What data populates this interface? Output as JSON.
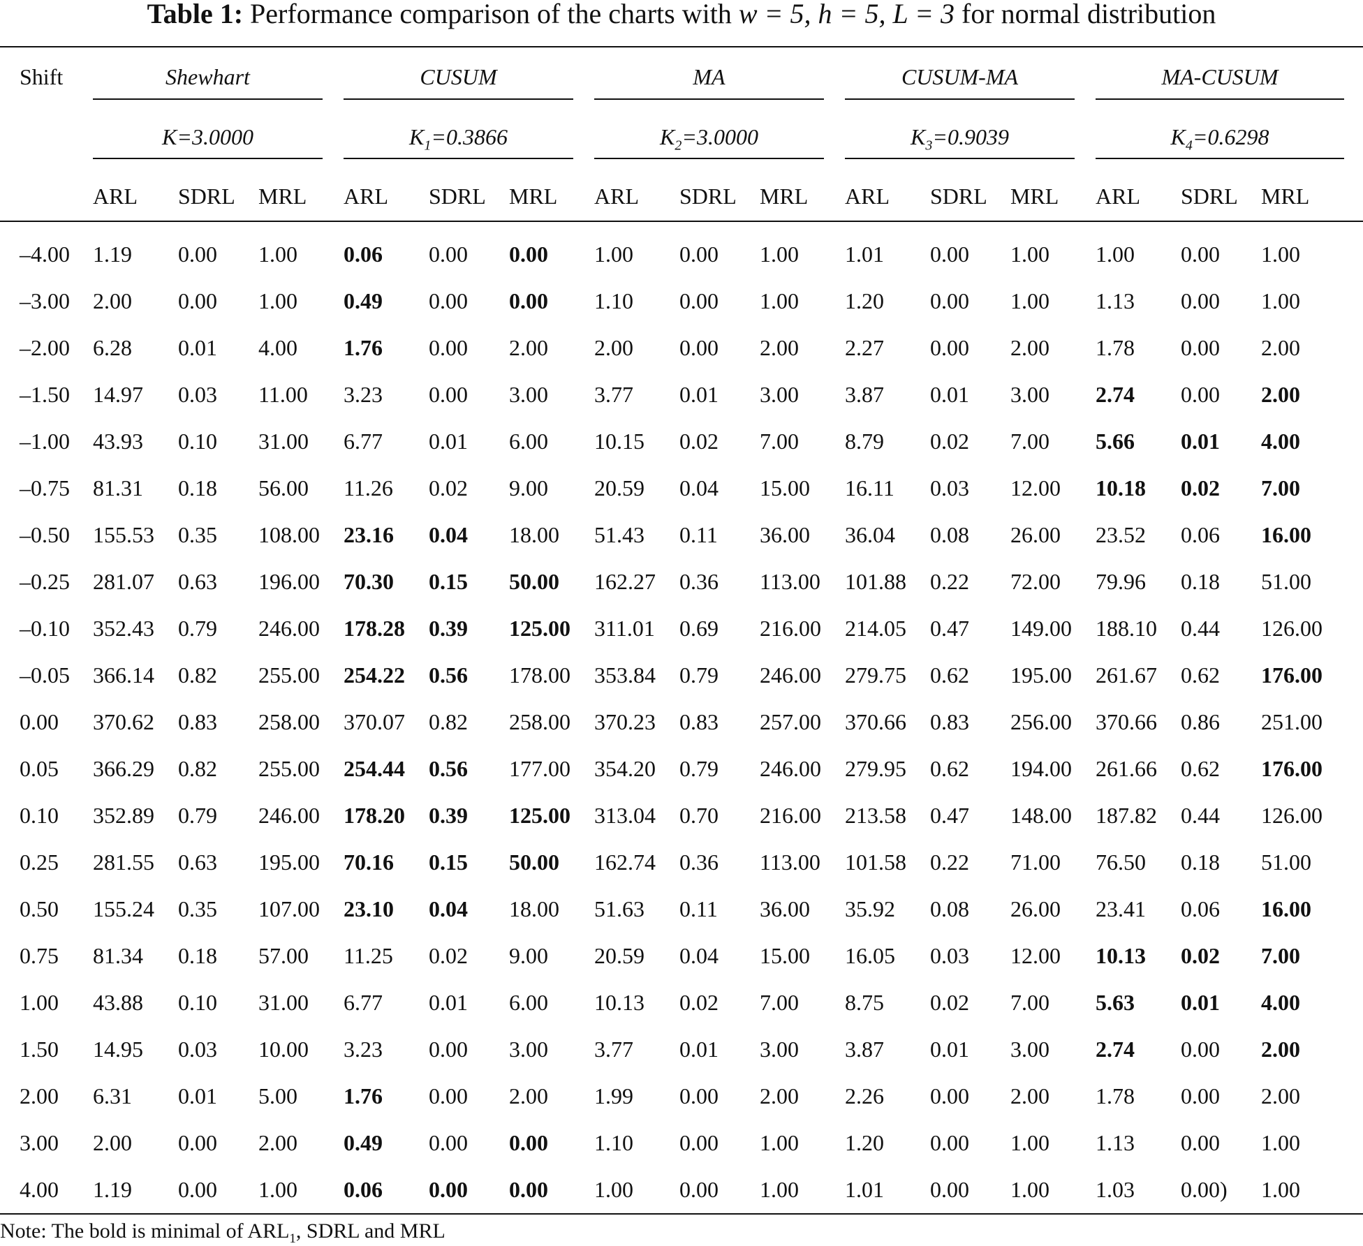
{
  "caption": {
    "label": "Table 1:",
    "text_before": "Performance comparison of the charts with",
    "math": "w = 5, h = 5, L = 3",
    "text_after": "for normal distribution"
  },
  "shift_header": "Shift",
  "groups": [
    {
      "name": "Shewhart",
      "k_sym": "K",
      "k_sub": "",
      "k_value": "=3.0000"
    },
    {
      "name": "CUSUM",
      "k_sym": "K",
      "k_sub": "1",
      "k_value": "=0.3866"
    },
    {
      "name": "MA",
      "k_sym": "K",
      "k_sub": "2",
      "k_value": "=3.0000"
    },
    {
      "name": "CUSUM-MA",
      "k_sym": "K",
      "k_sub": "3",
      "k_value": "=0.9039"
    },
    {
      "name": "MA-CUSUM",
      "k_sym": "K",
      "k_sub": "4",
      "k_value": "=0.6298"
    }
  ],
  "metrics": [
    "ARL",
    "SDRL",
    "MRL"
  ],
  "rows": [
    {
      "shift": "–4.00",
      "cells": [
        "1.19",
        "0.00",
        "1.00",
        "0.06",
        "0.00",
        "0.00",
        "1.00",
        "0.00",
        "1.00",
        "1.01",
        "0.00",
        "1.00",
        "1.00",
        "0.00",
        "1.00"
      ],
      "bold": [
        3,
        5
      ]
    },
    {
      "shift": "–3.00",
      "cells": [
        "2.00",
        "0.00",
        "1.00",
        "0.49",
        "0.00",
        "0.00",
        "1.10",
        "0.00",
        "1.00",
        "1.20",
        "0.00",
        "1.00",
        "1.13",
        "0.00",
        "1.00"
      ],
      "bold": [
        3,
        5
      ]
    },
    {
      "shift": "–2.00",
      "cells": [
        "6.28",
        "0.01",
        "4.00",
        "1.76",
        "0.00",
        "2.00",
        "2.00",
        "0.00",
        "2.00",
        "2.27",
        "0.00",
        "2.00",
        "1.78",
        "0.00",
        "2.00"
      ],
      "bold": [
        3
      ]
    },
    {
      "shift": "–1.50",
      "cells": [
        "14.97",
        "0.03",
        "11.00",
        "3.23",
        "0.00",
        "3.00",
        "3.77",
        "0.01",
        "3.00",
        "3.87",
        "0.01",
        "3.00",
        "2.74",
        "0.00",
        "2.00"
      ],
      "bold": [
        12,
        14
      ]
    },
    {
      "shift": "–1.00",
      "cells": [
        "43.93",
        "0.10",
        "31.00",
        "6.77",
        "0.01",
        "6.00",
        "10.15",
        "0.02",
        "7.00",
        "8.79",
        "0.02",
        "7.00",
        "5.66",
        "0.01",
        "4.00"
      ],
      "bold": [
        12,
        13,
        14
      ]
    },
    {
      "shift": "–0.75",
      "cells": [
        "81.31",
        "0.18",
        "56.00",
        "11.26",
        "0.02",
        "9.00",
        "20.59",
        "0.04",
        "15.00",
        "16.11",
        "0.03",
        "12.00",
        "10.18",
        "0.02",
        "7.00"
      ],
      "bold": [
        12,
        13,
        14
      ]
    },
    {
      "shift": "–0.50",
      "cells": [
        "155.53",
        "0.35",
        "108.00",
        "23.16",
        "0.04",
        "18.00",
        "51.43",
        "0.11",
        "36.00",
        "36.04",
        "0.08",
        "26.00",
        "23.52",
        "0.06",
        "16.00"
      ],
      "bold": [
        3,
        4,
        14
      ]
    },
    {
      "shift": "–0.25",
      "cells": [
        "281.07",
        "0.63",
        "196.00",
        "70.30",
        "0.15",
        "50.00",
        "162.27",
        "0.36",
        "113.00",
        "101.88",
        "0.22",
        "72.00",
        "79.96",
        "0.18",
        "51.00"
      ],
      "bold": [
        3,
        4,
        5
      ]
    },
    {
      "shift": "–0.10",
      "cells": [
        "352.43",
        "0.79",
        "246.00",
        "178.28",
        "0.39",
        "125.00",
        "311.01",
        "0.69",
        "216.00",
        "214.05",
        "0.47",
        "149.00",
        "188.10",
        "0.44",
        "126.00"
      ],
      "bold": [
        3,
        4,
        5
      ]
    },
    {
      "shift": "–0.05",
      "cells": [
        "366.14",
        "0.82",
        "255.00",
        "254.22",
        "0.56",
        "178.00",
        "353.84",
        "0.79",
        "246.00",
        "279.75",
        "0.62",
        "195.00",
        "261.67",
        "0.62",
        "176.00"
      ],
      "bold": [
        3,
        4,
        14
      ]
    },
    {
      "shift": "0.00",
      "cells": [
        "370.62",
        "0.83",
        "258.00",
        "370.07",
        "0.82",
        "258.00",
        "370.23",
        "0.83",
        "257.00",
        "370.66",
        "0.83",
        "256.00",
        "370.66",
        "0.86",
        "251.00"
      ],
      "bold": []
    },
    {
      "shift": "0.05",
      "cells": [
        "366.29",
        "0.82",
        "255.00",
        "254.44",
        "0.56",
        "177.00",
        "354.20",
        "0.79",
        "246.00",
        "279.95",
        "0.62",
        "194.00",
        "261.66",
        "0.62",
        "176.00"
      ],
      "bold": [
        3,
        4,
        14
      ]
    },
    {
      "shift": "0.10",
      "cells": [
        "352.89",
        "0.79",
        "246.00",
        "178.20",
        "0.39",
        "125.00",
        "313.04",
        "0.70",
        "216.00",
        "213.58",
        "0.47",
        "148.00",
        "187.82",
        "0.44",
        "126.00"
      ],
      "bold": [
        3,
        4,
        5
      ]
    },
    {
      "shift": "0.25",
      "cells": [
        "281.55",
        "0.63",
        "195.00",
        "70.16",
        "0.15",
        "50.00",
        "162.74",
        "0.36",
        "113.00",
        "101.58",
        "0.22",
        "71.00",
        "76.50",
        "0.18",
        "51.00"
      ],
      "bold": [
        3,
        4,
        5
      ]
    },
    {
      "shift": "0.50",
      "cells": [
        "155.24",
        "0.35",
        "107.00",
        "23.10",
        "0.04",
        "18.00",
        "51.63",
        "0.11",
        "36.00",
        "35.92",
        "0.08",
        "26.00",
        "23.41",
        "0.06",
        "16.00"
      ],
      "bold": [
        3,
        4,
        14
      ]
    },
    {
      "shift": "0.75",
      "cells": [
        "81.34",
        "0.18",
        "57.00",
        "11.25",
        "0.02",
        "9.00",
        "20.59",
        "0.04",
        "15.00",
        "16.05",
        "0.03",
        "12.00",
        "10.13",
        "0.02",
        "7.00"
      ],
      "bold": [
        12,
        13,
        14
      ]
    },
    {
      "shift": "1.00",
      "cells": [
        "43.88",
        "0.10",
        "31.00",
        "6.77",
        "0.01",
        "6.00",
        "10.13",
        "0.02",
        "7.00",
        "8.75",
        "0.02",
        "7.00",
        "5.63",
        "0.01",
        "4.00"
      ],
      "bold": [
        12,
        13,
        14
      ]
    },
    {
      "shift": "1.50",
      "cells": [
        "14.95",
        "0.03",
        "10.00",
        "3.23",
        "0.00",
        "3.00",
        "3.77",
        "0.01",
        "3.00",
        "3.87",
        "0.01",
        "3.00",
        "2.74",
        "0.00",
        "2.00"
      ],
      "bold": [
        12,
        14
      ]
    },
    {
      "shift": "2.00",
      "cells": [
        "6.31",
        "0.01",
        "5.00",
        "1.76",
        "0.00",
        "2.00",
        "1.99",
        "0.00",
        "2.00",
        "2.26",
        "0.00",
        "2.00",
        "1.78",
        "0.00",
        "2.00"
      ],
      "bold": [
        3
      ]
    },
    {
      "shift": "3.00",
      "cells": [
        "2.00",
        "0.00",
        "2.00",
        "0.49",
        "0.00",
        "0.00",
        "1.10",
        "0.00",
        "1.00",
        "1.20",
        "0.00",
        "1.00",
        "1.13",
        "0.00",
        "1.00"
      ],
      "bold": [
        3,
        5
      ]
    },
    {
      "shift": "4.00",
      "cells": [
        "1.19",
        "0.00",
        "1.00",
        "0.06",
        "0.00",
        "0.00",
        "1.00",
        "0.00",
        "1.00",
        "1.01",
        "0.00",
        "1.00",
        "1.03",
        "0.00)",
        "1.00"
      ],
      "bold": [
        3,
        4,
        5
      ]
    }
  ],
  "note": {
    "text": "Note: The bold is minimal of ARL",
    "sub": "1",
    "rest": ", SDRL and MRL"
  }
}
